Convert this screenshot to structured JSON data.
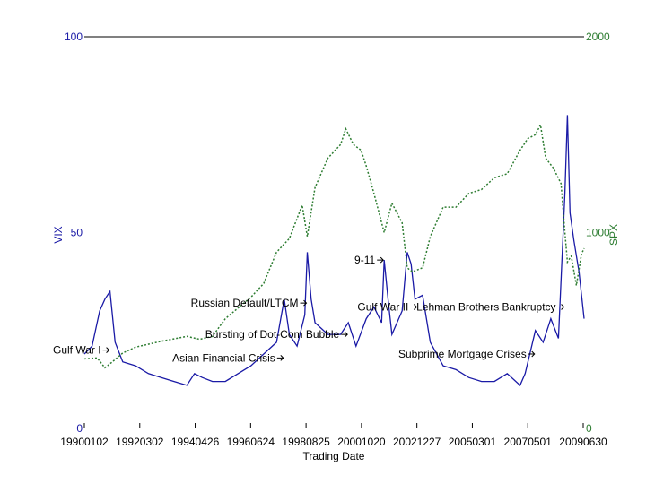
{
  "chart_data": {
    "type": "line",
    "xlabel": "Trading Date",
    "left_axis": {
      "label": "VIX",
      "ticks": [
        "0",
        "50",
        "100"
      ],
      "ylim": [
        0,
        100
      ],
      "color": "#1a1aa6"
    },
    "right_axis": {
      "label": "SPX",
      "ticks": [
        "0",
        "1000",
        "2000"
      ],
      "ylim": [
        0,
        2000
      ],
      "color": "#2e7d32"
    },
    "x_ticks": [
      "19900102",
      "19920302",
      "19940426",
      "19960624",
      "19980825",
      "20001020",
      "20021227",
      "20050301",
      "20070501",
      "20090630"
    ],
    "xlim": [
      1990.0,
      2009.5
    ],
    "series": [
      {
        "name": "VIX",
        "axis": "left",
        "color": "#1a1aa6",
        "style": "solid",
        "points": [
          [
            1990.0,
            19
          ],
          [
            1990.3,
            21
          ],
          [
            1990.6,
            30
          ],
          [
            1990.8,
            33
          ],
          [
            1991.0,
            35
          ],
          [
            1991.2,
            22
          ],
          [
            1991.5,
            17
          ],
          [
            1992.0,
            16
          ],
          [
            1992.5,
            14
          ],
          [
            1993.0,
            13
          ],
          [
            1993.5,
            12
          ],
          [
            1994.0,
            11
          ],
          [
            1994.3,
            14
          ],
          [
            1994.6,
            13
          ],
          [
            1995.0,
            12
          ],
          [
            1995.5,
            12
          ],
          [
            1996.0,
            14
          ],
          [
            1996.5,
            16
          ],
          [
            1997.0,
            19
          ],
          [
            1997.5,
            22
          ],
          [
            1997.8,
            33
          ],
          [
            1998.0,
            24
          ],
          [
            1998.3,
            21
          ],
          [
            1998.6,
            29
          ],
          [
            1998.7,
            45
          ],
          [
            1998.85,
            33
          ],
          [
            1999.0,
            27
          ],
          [
            1999.5,
            24
          ],
          [
            2000.0,
            24
          ],
          [
            2000.3,
            27
          ],
          [
            2000.6,
            21
          ],
          [
            2001.0,
            28
          ],
          [
            2001.3,
            31
          ],
          [
            2001.6,
            27
          ],
          [
            2001.7,
            43
          ],
          [
            2001.85,
            33
          ],
          [
            2002.0,
            24
          ],
          [
            2002.4,
            30
          ],
          [
            2002.6,
            45
          ],
          [
            2002.75,
            42
          ],
          [
            2002.9,
            33
          ],
          [
            2003.2,
            34
          ],
          [
            2003.5,
            22
          ],
          [
            2004.0,
            16
          ],
          [
            2004.5,
            15
          ],
          [
            2005.0,
            13
          ],
          [
            2005.5,
            12
          ],
          [
            2006.0,
            12
          ],
          [
            2006.5,
            14
          ],
          [
            2007.0,
            11
          ],
          [
            2007.2,
            14
          ],
          [
            2007.6,
            25
          ],
          [
            2007.9,
            22
          ],
          [
            2008.2,
            28
          ],
          [
            2008.5,
            23
          ],
          [
            2008.75,
            60
          ],
          [
            2008.85,
            80
          ],
          [
            2008.95,
            55
          ],
          [
            2009.1,
            48
          ],
          [
            2009.3,
            40
          ],
          [
            2009.5,
            28
          ]
        ]
      },
      {
        "name": "SPX",
        "axis": "right",
        "color": "#2e7d32",
        "style": "dotted",
        "points": [
          [
            1990.0,
            355
          ],
          [
            1990.5,
            360
          ],
          [
            1990.8,
            310
          ],
          [
            1991.0,
            330
          ],
          [
            1991.5,
            385
          ],
          [
            1992.0,
            415
          ],
          [
            1993.0,
            445
          ],
          [
            1994.0,
            470
          ],
          [
            1994.5,
            455
          ],
          [
            1995.0,
            470
          ],
          [
            1995.5,
            560
          ],
          [
            1996.0,
            615
          ],
          [
            1996.5,
            670
          ],
          [
            1997.0,
            740
          ],
          [
            1997.5,
            900
          ],
          [
            1998.0,
            970
          ],
          [
            1998.5,
            1140
          ],
          [
            1998.7,
            980
          ],
          [
            1999.0,
            1230
          ],
          [
            1999.5,
            1380
          ],
          [
            2000.0,
            1450
          ],
          [
            2000.2,
            1530
          ],
          [
            2000.5,
            1450
          ],
          [
            2000.8,
            1420
          ],
          [
            2001.0,
            1340
          ],
          [
            2001.3,
            1200
          ],
          [
            2001.7,
            1000
          ],
          [
            2002.0,
            1150
          ],
          [
            2002.4,
            1050
          ],
          [
            2002.6,
            820
          ],
          [
            2002.8,
            800
          ],
          [
            2003.2,
            820
          ],
          [
            2003.5,
            980
          ],
          [
            2004.0,
            1130
          ],
          [
            2004.5,
            1130
          ],
          [
            2005.0,
            1200
          ],
          [
            2005.5,
            1220
          ],
          [
            2006.0,
            1280
          ],
          [
            2006.5,
            1300
          ],
          [
            2007.0,
            1420
          ],
          [
            2007.3,
            1480
          ],
          [
            2007.6,
            1500
          ],
          [
            2007.8,
            1550
          ],
          [
            2008.0,
            1380
          ],
          [
            2008.3,
            1330
          ],
          [
            2008.6,
            1250
          ],
          [
            2008.75,
            1000
          ],
          [
            2008.85,
            850
          ],
          [
            2009.0,
            880
          ],
          [
            2009.2,
            730
          ],
          [
            2009.4,
            890
          ],
          [
            2009.5,
            920
          ]
        ]
      }
    ],
    "annotations": [
      {
        "text": "Gulf War I",
        "x": 1991.0,
        "series": "VIX",
        "value": 20
      },
      {
        "text": "Asian Financial Crisis",
        "x": 1997.8,
        "series": "VIX",
        "value": 18
      },
      {
        "text": "Russian Default/LTCM",
        "x": 1998.7,
        "series": "VIX",
        "value": 32
      },
      {
        "text": "9-11",
        "x": 2001.7,
        "series": "VIX",
        "value": 43
      },
      {
        "text": "Gulf War II",
        "x": 2003.0,
        "series": "VIX",
        "value": 31
      },
      {
        "text": "Bursting of Dot-Com Bubble",
        "x": 2000.3,
        "series": "VIX",
        "value": 24
      },
      {
        "text": "Lehman Brothers Bankruptcy",
        "x": 2008.75,
        "series": "VIX",
        "value": 31
      },
      {
        "text": "Subprime Mortgage Crises",
        "x": 2007.6,
        "series": "VIX",
        "value": 19
      }
    ]
  }
}
